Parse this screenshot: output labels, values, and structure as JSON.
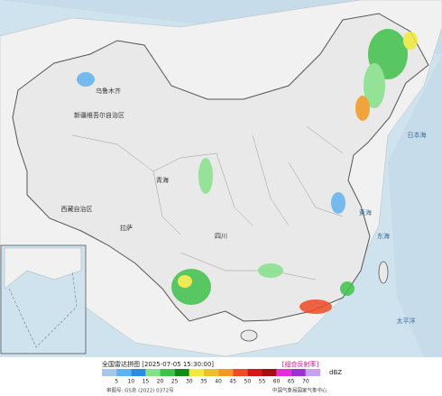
{
  "map_labels": [
    "乌鲁木齐",
    "新疆维吾尔自治区",
    "西藏自治区",
    "拉萨",
    "青海",
    "四川",
    "黄海",
    "东海",
    "太平洋",
    "日本海"
  ],
  "legend": {
    "title": "全国雷达拼图 [2025-07-05 15:30:00]",
    "product": "[组合反射率]",
    "unit": "dBZ",
    "ticks": [
      5,
      10,
      15,
      20,
      25,
      30,
      35,
      40,
      45,
      50,
      55,
      60,
      65,
      70
    ],
    "colors": [
      "#a7c6e8",
      "#5fb2f0",
      "#2c8ae4",
      "#86e08a",
      "#3fc24a",
      "#128a1b",
      "#f1ea3b",
      "#e7c22a",
      "#f29a1f",
      "#f04a26",
      "#d8121b",
      "#a50d12",
      "#e62bd7",
      "#9a33d6",
      "#c6a3ef"
    ]
  },
  "footer": {
    "approval": "审图号: GS京 (2022) 0372号",
    "agency": "中国气象局国家气象中心"
  }
}
